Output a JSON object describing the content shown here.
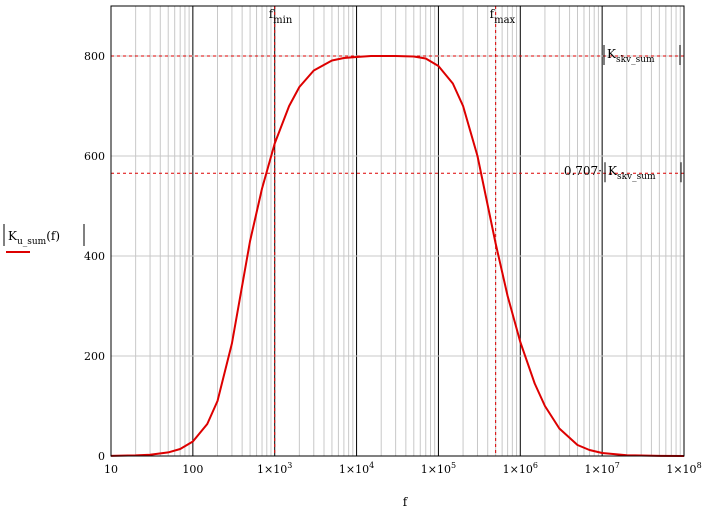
{
  "chart_data": {
    "type": "line",
    "x_scale": "log",
    "xlim": [
      10,
      100000000
    ],
    "ylim": [
      0,
      900
    ],
    "grid": true,
    "xticks": [
      10,
      100,
      1000,
      10000,
      100000,
      1000000,
      10000000,
      100000000
    ],
    "xtick_labels": [
      {
        "base": "10",
        "exp": ""
      },
      {
        "base": "100",
        "exp": ""
      },
      {
        "base": "1×10",
        "exp": "3"
      },
      {
        "base": "1×10",
        "exp": "4"
      },
      {
        "base": "1×10",
        "exp": "5"
      },
      {
        "base": "1×10",
        "exp": "6"
      },
      {
        "base": "1×10",
        "exp": "7"
      },
      {
        "base": "1×10",
        "exp": "8"
      }
    ],
    "yticks": [
      0,
      200,
      400,
      600,
      800
    ],
    "ytick_labels": [
      "0",
      "200",
      "400",
      "600",
      "800"
    ],
    "xlabel": "f",
    "ylabel": {
      "main": "K",
      "sub": "u_sum",
      "arg": "(f)"
    },
    "series": [
      {
        "color": "#dd0000",
        "x": [
          10,
          20,
          30,
          50,
          70,
          100,
          150,
          200,
          300,
          500,
          700,
          1000,
          1500,
          2000,
          3000,
          5000,
          7000,
          10000,
          15000,
          20000,
          30000,
          50000,
          70000,
          100000,
          150000,
          200000,
          300000,
          500000,
          700000,
          1000000,
          1500000,
          2000000,
          3000000,
          5000000,
          7000000,
          10000000,
          20000000,
          50000000,
          100000000
        ],
        "y": [
          0.3,
          1.2,
          2.6,
          7.2,
          14,
          29,
          64,
          110,
          225,
          430,
          535,
          625,
          700,
          738,
          771,
          791,
          796,
          798,
          800,
          800,
          800,
          799,
          795,
          780,
          745,
          700,
          600,
          425,
          320,
          228,
          145,
          100,
          55,
          22,
          12,
          6,
          1.5,
          0.3,
          0.1
        ]
      }
    ],
    "reference_lines": {
      "horizontal": [
        {
          "y": 800,
          "label": {
            "main": "K",
            "sub": "skv_sum",
            "prefix": ""
          }
        },
        {
          "y": 565.6,
          "label": {
            "main": "K",
            "sub": "skv_sum",
            "prefix": "0.707·"
          }
        }
      ],
      "vertical": [
        {
          "x": 1000,
          "label": {
            "main": "f",
            "sub": "min"
          }
        },
        {
          "x": 500000,
          "label": {
            "main": "f",
            "sub": "max"
          }
        }
      ]
    }
  }
}
